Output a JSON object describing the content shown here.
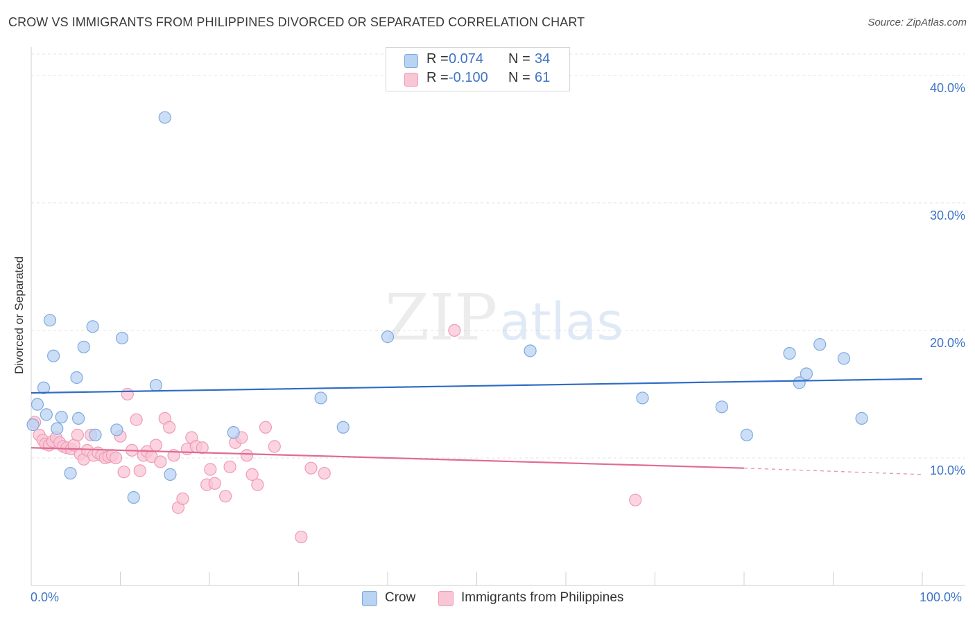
{
  "title": "CROW VS IMMIGRANTS FROM PHILIPPINES DIVORCED OR SEPARATED CORRELATION CHART",
  "source": "Source: ZipAtlas.com",
  "watermark": {
    "zip": "ZIP",
    "atlas": "atlas"
  },
  "colors": {
    "crow_fill": "#b9d3f3",
    "crow_stroke": "#7fa9e0",
    "crow_line": "#2f6cc4",
    "phil_fill": "#f9c6d6",
    "phil_stroke": "#ee9bb6",
    "phil_line": "#e06b94",
    "axis_text": "#3e74c6",
    "grid": "#e3e3e3"
  },
  "legend": {
    "rows": [
      {
        "r_label": "R =",
        "r_value": "0.074",
        "n_label": "N =",
        "n_value": "34"
      },
      {
        "r_label": "R =",
        "r_value": "-0.100",
        "n_label": "N =",
        "n_value": "61"
      }
    ]
  },
  "bottom_legend": {
    "crow": "Crow",
    "phil": "Immigrants from Philippines"
  },
  "chart_data": {
    "type": "scatter",
    "title": "CROW VS IMMIGRANTS FROM PHILIPPINES DIVORCED OR SEPARATED CORRELATION CHART",
    "xlabel": "",
    "ylabel": "Divorced or Separated",
    "xlim": [
      0,
      100
    ],
    "ylim": [
      0,
      42
    ],
    "x_tick_labels": [
      "0.0%",
      "100.0%"
    ],
    "y_ticks": [
      10,
      20,
      30,
      40
    ],
    "y_tick_labels": [
      "10.0%",
      "20.0%",
      "30.0%",
      "40.0%"
    ],
    "grid": true,
    "legend_position": "top-center",
    "series": [
      {
        "name": "Crow",
        "r": 0.074,
        "n": 34,
        "trend": {
          "x": [
            0,
            100
          ],
          "y": [
            15.1,
            16.2
          ]
        },
        "points": [
          [
            0.2,
            12.6
          ],
          [
            0.7,
            14.2
          ],
          [
            1.4,
            15.5
          ],
          [
            1.7,
            13.4
          ],
          [
            2.1,
            20.8
          ],
          [
            2.5,
            18.0
          ],
          [
            2.9,
            12.3
          ],
          [
            3.4,
            13.2
          ],
          [
            4.4,
            8.8
          ],
          [
            5.1,
            16.3
          ],
          [
            5.3,
            13.1
          ],
          [
            5.9,
            18.7
          ],
          [
            6.9,
            20.3
          ],
          [
            7.2,
            11.8
          ],
          [
            9.6,
            12.2
          ],
          [
            10.2,
            19.4
          ],
          [
            11.5,
            6.9
          ],
          [
            14.0,
            15.7
          ],
          [
            15.0,
            36.7
          ],
          [
            15.6,
            8.7
          ],
          [
            22.7,
            12.0
          ],
          [
            32.5,
            14.7
          ],
          [
            35.0,
            12.4
          ],
          [
            40.0,
            19.5
          ],
          [
            56.0,
            18.4
          ],
          [
            68.6,
            14.7
          ],
          [
            77.5,
            14.0
          ],
          [
            80.3,
            11.8
          ],
          [
            85.1,
            18.2
          ],
          [
            86.2,
            15.9
          ],
          [
            87.0,
            16.6
          ],
          [
            88.5,
            18.9
          ],
          [
            91.2,
            17.8
          ],
          [
            93.2,
            13.1
          ]
        ]
      },
      {
        "name": "Immigrants from Philippines",
        "r": -0.1,
        "n": 61,
        "trend": {
          "x": [
            0,
            80
          ],
          "y": [
            10.8,
            9.2
          ],
          "dashed_to": [
            100,
            8.7
          ]
        },
        "points": [
          [
            0.4,
            12.8
          ],
          [
            0.9,
            11.8
          ],
          [
            1.3,
            11.4
          ],
          [
            1.6,
            11.1
          ],
          [
            2.0,
            11.0
          ],
          [
            2.4,
            11.3
          ],
          [
            2.8,
            11.6
          ],
          [
            3.2,
            11.2
          ],
          [
            3.6,
            10.9
          ],
          [
            4.0,
            10.8
          ],
          [
            4.5,
            10.7
          ],
          [
            4.8,
            11.0
          ],
          [
            5.2,
            11.8
          ],
          [
            5.5,
            10.3
          ],
          [
            5.9,
            9.9
          ],
          [
            6.3,
            10.6
          ],
          [
            6.7,
            11.8
          ],
          [
            7.0,
            10.2
          ],
          [
            7.5,
            10.4
          ],
          [
            7.9,
            10.2
          ],
          [
            8.3,
            10.0
          ],
          [
            8.7,
            10.1
          ],
          [
            9.1,
            10.2
          ],
          [
            9.5,
            10.0
          ],
          [
            10.0,
            11.7
          ],
          [
            10.4,
            8.9
          ],
          [
            10.8,
            15.0
          ],
          [
            11.3,
            10.6
          ],
          [
            11.8,
            13.0
          ],
          [
            12.2,
            9.0
          ],
          [
            12.6,
            10.2
          ],
          [
            13.0,
            10.5
          ],
          [
            13.5,
            10.1
          ],
          [
            14.0,
            11.0
          ],
          [
            14.5,
            9.7
          ],
          [
            15.0,
            13.1
          ],
          [
            15.5,
            12.4
          ],
          [
            16.0,
            10.2
          ],
          [
            16.5,
            6.1
          ],
          [
            17.0,
            6.8
          ],
          [
            17.5,
            10.7
          ],
          [
            18.0,
            11.6
          ],
          [
            18.5,
            10.9
          ],
          [
            19.2,
            10.8
          ],
          [
            19.7,
            7.9
          ],
          [
            20.1,
            9.1
          ],
          [
            20.6,
            8.0
          ],
          [
            21.8,
            7.0
          ],
          [
            22.3,
            9.3
          ],
          [
            22.9,
            11.2
          ],
          [
            23.6,
            11.6
          ],
          [
            24.2,
            10.2
          ],
          [
            24.8,
            8.7
          ],
          [
            25.4,
            7.9
          ],
          [
            26.3,
            12.4
          ],
          [
            27.3,
            10.9
          ],
          [
            30.3,
            3.8
          ],
          [
            31.4,
            9.2
          ],
          [
            32.9,
            8.8
          ],
          [
            47.5,
            20.0
          ],
          [
            67.8,
            6.7
          ]
        ]
      }
    ]
  }
}
